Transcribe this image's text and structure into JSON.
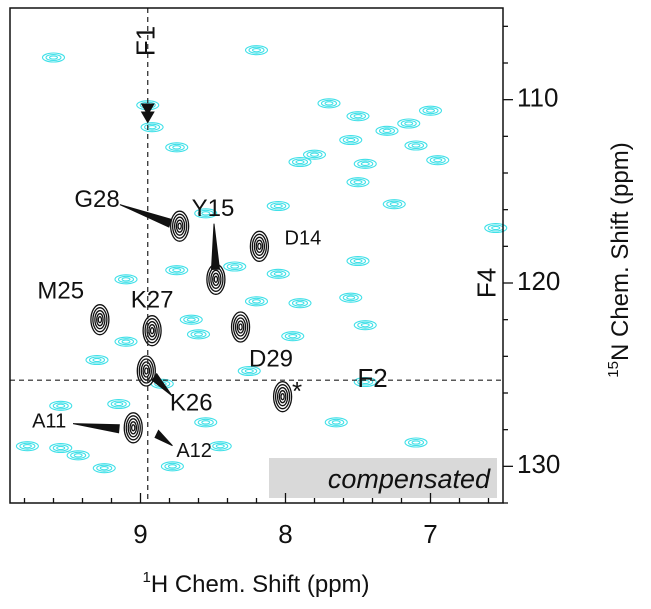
{
  "chart_data": {
    "type": "scatter",
    "xlabel_prefix": "1",
    "xlabel": "H Chem. Shift (ppm)",
    "ylabel_prefix": "15",
    "ylabel": "N Chem. Shift (ppm)",
    "x_reversed": true,
    "y_reversed": true,
    "xlim": [
      9.9,
      6.5
    ],
    "ylim": [
      105,
      132
    ],
    "x_ticks": [
      9,
      8,
      7
    ],
    "y_ticks": [
      110,
      120,
      130
    ],
    "grid": false,
    "box_label": "compensated",
    "colors": {
      "reference_contours": "#40e0e8",
      "compensated_contours": "#111111",
      "box_fill": "#d9d9d9"
    },
    "slice_lines": [
      {
        "name": "F1",
        "orientation": "vertical",
        "x": 8.95
      },
      {
        "name": "F2",
        "orientation": "horizontal",
        "y": 125.3
      }
    ],
    "marker_labels": [
      {
        "text": "F1",
        "x": 8.95,
        "y": 106.8
      },
      {
        "text": "F2",
        "x": 7.4,
        "y": 125.3
      },
      {
        "text": "F4",
        "x": 6.6,
        "y": 120.0
      },
      {
        "text": "*",
        "x": 7.92,
        "y": 126.0
      }
    ],
    "peaks": [
      {
        "label": "Y15",
        "x": 8.48,
        "y": 119.8,
        "label_at": [
          8.5,
          116.0
        ],
        "arrow": true
      },
      {
        "label": "D14",
        "x": 8.18,
        "y": 118.0,
        "label_at": [
          7.88,
          117.6
        ],
        "arrow": false
      },
      {
        "label": "G28",
        "x": 8.73,
        "y": 116.9,
        "label_at": [
          9.3,
          115.5
        ],
        "arrow": true
      },
      {
        "label": "M25",
        "x": 9.28,
        "y": 122.0,
        "label_at": [
          9.55,
          120.5
        ],
        "arrow": false
      },
      {
        "label": "K27",
        "x": 8.92,
        "y": 122.6,
        "label_at": [
          8.92,
          121.0
        ],
        "arrow": false
      },
      {
        "label": "D29",
        "x": 8.31,
        "y": 122.4,
        "label_at": [
          8.1,
          124.2
        ],
        "arrow": false
      },
      {
        "label": "K26",
        "x": 8.96,
        "y": 124.8,
        "label_at": [
          8.65,
          126.6
        ],
        "arrow": true
      },
      {
        "label": "A11",
        "x": 9.08,
        "y": 128.0,
        "label_at": [
          9.63,
          127.6
        ],
        "arrow": true
      },
      {
        "label": "A12",
        "x": 8.95,
        "y": 128.0,
        "label_at": [
          8.63,
          129.2
        ],
        "arrow": true
      }
    ],
    "compensated_peaks": [
      [
        9.28,
        122.0
      ],
      [
        8.92,
        122.6
      ],
      [
        8.48,
        119.8
      ],
      [
        8.31,
        122.4
      ],
      [
        8.96,
        124.8
      ],
      [
        8.73,
        116.9
      ],
      [
        8.18,
        118.0
      ],
      [
        9.05,
        127.9
      ],
      [
        8.02,
        126.2
      ]
    ],
    "reference_peaks": [
      [
        8.92,
        111.5
      ],
      [
        8.75,
        112.6
      ],
      [
        7.7,
        110.2
      ],
      [
        7.5,
        110.9
      ],
      [
        7.3,
        111.7
      ],
      [
        7.55,
        112.2
      ],
      [
        7.8,
        113.0
      ],
      [
        7.9,
        113.4
      ],
      [
        7.45,
        113.5
      ],
      [
        7.15,
        111.3
      ],
      [
        7.0,
        110.6
      ],
      [
        7.1,
        112.5
      ],
      [
        6.95,
        113.3
      ],
      [
        7.5,
        114.5
      ],
      [
        7.25,
        115.7
      ],
      [
        8.55,
        116.2
      ],
      [
        8.05,
        115.8
      ],
      [
        6.55,
        117.0
      ],
      [
        8.75,
        119.3
      ],
      [
        9.1,
        119.8
      ],
      [
        8.35,
        119.1
      ],
      [
        8.05,
        119.5
      ],
      [
        7.5,
        118.8
      ],
      [
        8.2,
        121.0
      ],
      [
        7.9,
        121.1
      ],
      [
        7.55,
        120.8
      ],
      [
        8.6,
        122.8
      ],
      [
        9.1,
        123.2
      ],
      [
        7.95,
        122.9
      ],
      [
        7.45,
        122.3
      ],
      [
        9.3,
        124.2
      ],
      [
        8.25,
        124.8
      ],
      [
        8.85,
        125.5
      ],
      [
        7.45,
        125.4
      ],
      [
        9.15,
        126.6
      ],
      [
        8.55,
        127.6
      ],
      [
        8.45,
        128.9
      ],
      [
        9.55,
        126.7
      ],
      [
        9.78,
        128.9
      ],
      [
        9.43,
        129.4
      ],
      [
        9.25,
        130.1
      ],
      [
        9.55,
        129.0
      ],
      [
        7.65,
        127.6
      ],
      [
        7.45,
        130.0
      ],
      [
        7.1,
        128.7
      ],
      [
        8.78,
        130.0
      ],
      [
        8.95,
        110.3
      ],
      [
        8.2,
        107.3
      ],
      [
        9.6,
        107.7
      ],
      [
        8.65,
        122.0
      ]
    ]
  }
}
